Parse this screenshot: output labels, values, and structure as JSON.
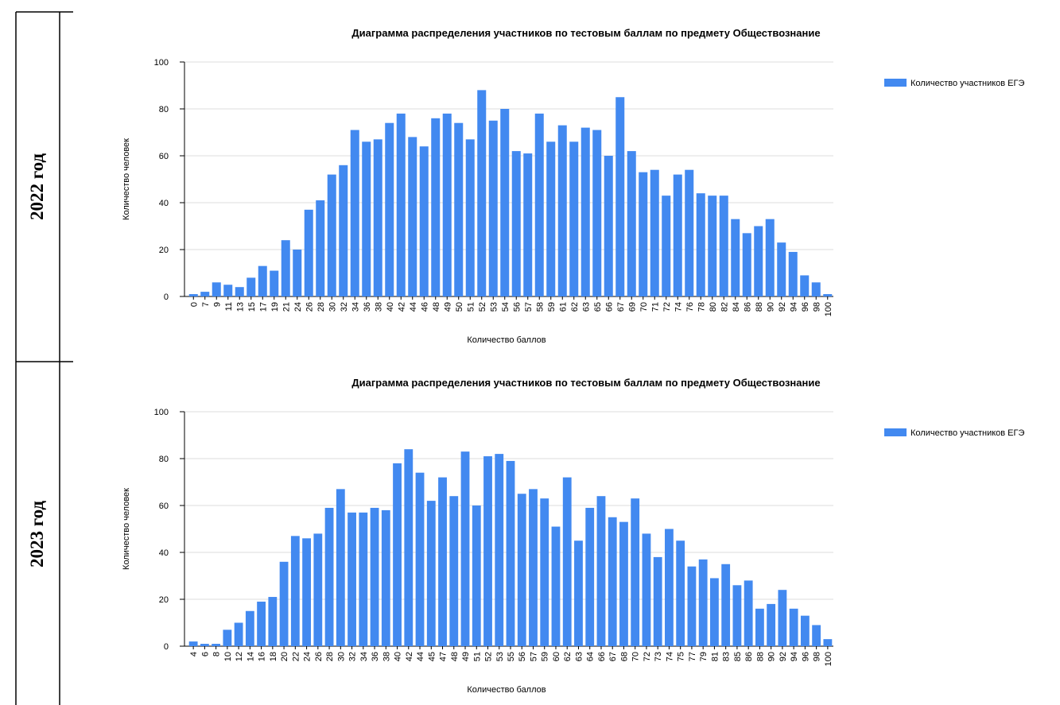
{
  "row_labels": [
    "2022 год",
    "2023 год"
  ],
  "chart_data": [
    {
      "type": "bar",
      "title": "Диаграмма распределения участников по тестовым баллам по предмету Обществознание",
      "x_label": "Количество баллов",
      "y_label": "Количество человек",
      "categories": [
        "0",
        "7",
        "9",
        "11",
        "13",
        "15",
        "17",
        "19",
        "21",
        "24",
        "26",
        "28",
        "30",
        "32",
        "34",
        "36",
        "38",
        "40",
        "42",
        "44",
        "46",
        "48",
        "49",
        "50",
        "51",
        "52",
        "53",
        "54",
        "56",
        "57",
        "58",
        "59",
        "61",
        "62",
        "63",
        "65",
        "66",
        "67",
        "69",
        "70",
        "71",
        "72",
        "74",
        "76",
        "78",
        "80",
        "82",
        "84",
        "86",
        "88",
        "90",
        "92",
        "94",
        "96",
        "98",
        "100"
      ],
      "series": [
        {
          "name": "Количество участников ЕГЭ",
          "color": "#4289f0",
          "values": [
            1,
            2,
            6,
            5,
            4,
            8,
            13,
            11,
            24,
            20,
            37,
            41,
            52,
            56,
            71,
            66,
            67,
            74,
            78,
            68,
            64,
            76,
            78,
            74,
            67,
            88,
            75,
            80,
            62,
            61,
            78,
            66,
            73,
            66,
            72,
            71,
            60,
            85,
            62,
            53,
            54,
            43,
            52,
            54,
            44,
            43,
            43,
            33,
            27,
            30,
            33,
            23,
            19,
            9,
            6,
            1
          ]
        }
      ],
      "ylim": [
        0,
        100
      ],
      "yticks": [
        0,
        20,
        40,
        60,
        80,
        100
      ],
      "grid": true,
      "legend": "top-right"
    },
    {
      "type": "bar",
      "title": "Диаграмма распределения участников по тестовым баллам по предмету Обществознание",
      "x_label": "Количество баллов",
      "y_label": "Количество человек",
      "categories": [
        "4",
        "6",
        "8",
        "10",
        "12",
        "14",
        "16",
        "18",
        "20",
        "22",
        "24",
        "26",
        "28",
        "30",
        "32",
        "34",
        "36",
        "38",
        "40",
        "42",
        "44",
        "45",
        "47",
        "48",
        "49",
        "51",
        "52",
        "53",
        "55",
        "56",
        "57",
        "59",
        "60",
        "62",
        "63",
        "64",
        "66",
        "67",
        "68",
        "70",
        "72",
        "73",
        "74",
        "75",
        "77",
        "79",
        "81",
        "83",
        "85",
        "86",
        "88",
        "90",
        "92",
        "94",
        "96",
        "98",
        "100"
      ],
      "series": [
        {
          "name": "Количество участников ЕГЭ",
          "color": "#4289f0",
          "values": [
            2,
            1,
            1,
            7,
            10,
            15,
            19,
            21,
            36,
            47,
            46,
            48,
            59,
            67,
            57,
            57,
            59,
            58,
            78,
            84,
            74,
            62,
            72,
            64,
            83,
            60,
            81,
            82,
            79,
            65,
            67,
            63,
            51,
            72,
            45,
            59,
            64,
            55,
            53,
            63,
            48,
            38,
            50,
            45,
            34,
            37,
            29,
            35,
            26,
            28,
            16,
            18,
            24,
            16,
            13,
            9,
            3
          ]
        }
      ],
      "ylim": [
        0,
        100
      ],
      "yticks": [
        0,
        20,
        40,
        60,
        80,
        100
      ],
      "grid": true,
      "legend": "top-right"
    }
  ]
}
